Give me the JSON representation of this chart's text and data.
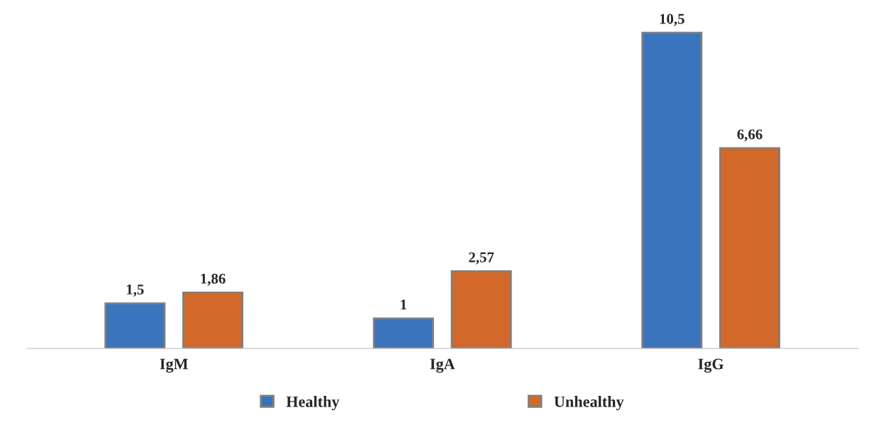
{
  "chart_data": {
    "type": "bar",
    "categories": [
      "IgM",
      "IgA",
      "IgG"
    ],
    "series": [
      {
        "name": "Healthy",
        "color": "#3a74bd",
        "values": [
          1.5,
          1,
          10.5
        ],
        "value_labels": [
          "1,5",
          "1",
          "10,5"
        ]
      },
      {
        "name": "Unhealthy",
        "color": "#d2692a",
        "values": [
          1.86,
          2.57,
          6.66
        ],
        "value_labels": [
          "1,86",
          "2,57",
          "6,66"
        ]
      }
    ],
    "legend": "bottom",
    "grid": false
  }
}
